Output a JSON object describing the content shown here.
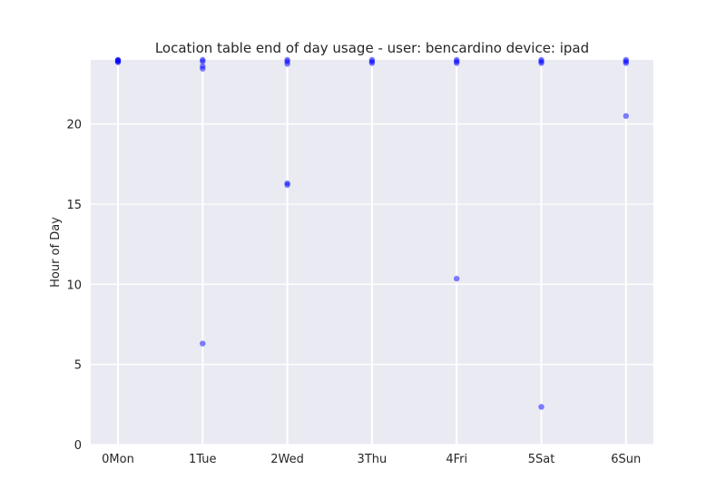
{
  "chart_data": {
    "type": "scatter",
    "title": "Location table end of day usage -  user: bencardino device: ipad",
    "xlabel": "",
    "ylabel": "Hour of Day",
    "categories": [
      "0Mon",
      "1Tue",
      "2Wed",
      "3Thu",
      "4Fri",
      "5Sat",
      "6Sun"
    ],
    "x_ticks": [
      0,
      1,
      2,
      3,
      4,
      5,
      6
    ],
    "ylim": [
      0,
      24
    ],
    "yticks": [
      0,
      5,
      10,
      15,
      20
    ],
    "grid": true,
    "point_color": "#0000ff",
    "background_color": "#eaeaf2",
    "grid_color": "#ffffff",
    "points": [
      {
        "x": 0,
        "y": 23.95
      },
      {
        "x": 0,
        "y": 23.9
      },
      {
        "x": 0,
        "y": 24.0
      },
      {
        "x": 0,
        "y": 23.85
      },
      {
        "x": 0,
        "y": 23.98
      },
      {
        "x": 1,
        "y": 24.0
      },
      {
        "x": 1,
        "y": 23.9
      },
      {
        "x": 1,
        "y": 23.6
      },
      {
        "x": 1,
        "y": 23.45
      },
      {
        "x": 1,
        "y": 6.3
      },
      {
        "x": 2,
        "y": 24.0
      },
      {
        "x": 2,
        "y": 23.9
      },
      {
        "x": 2,
        "y": 23.75
      },
      {
        "x": 2,
        "y": 16.3
      },
      {
        "x": 2,
        "y": 16.2
      },
      {
        "x": 3,
        "y": 24.0
      },
      {
        "x": 3,
        "y": 23.9
      },
      {
        "x": 3,
        "y": 23.8
      },
      {
        "x": 4,
        "y": 24.0
      },
      {
        "x": 4,
        "y": 23.9
      },
      {
        "x": 4,
        "y": 23.8
      },
      {
        "x": 4,
        "y": 10.35
      },
      {
        "x": 5,
        "y": 24.0
      },
      {
        "x": 5,
        "y": 23.9
      },
      {
        "x": 5,
        "y": 23.8
      },
      {
        "x": 5,
        "y": 2.35
      },
      {
        "x": 6,
        "y": 24.0
      },
      {
        "x": 6,
        "y": 23.9
      },
      {
        "x": 6,
        "y": 23.8
      },
      {
        "x": 6,
        "y": 20.5
      }
    ]
  }
}
